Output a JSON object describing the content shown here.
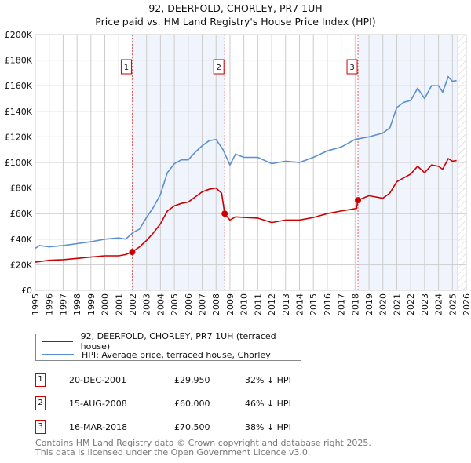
{
  "title_line1": "92, DEERFOLD, CHORLEY, PR7 1UH",
  "title_line2": "Price paid vs. HM Land Registry's House Price Index (HPI)",
  "chart_data": {
    "type": "line",
    "xlim": [
      1995,
      2026
    ],
    "ylim": [
      0,
      200000
    ],
    "x_ticks": [
      "1995",
      "1996",
      "1997",
      "1998",
      "1999",
      "2000",
      "2001",
      "2002",
      "2003",
      "2004",
      "2005",
      "2006",
      "2007",
      "2008",
      "2009",
      "2010",
      "2011",
      "2012",
      "2013",
      "2014",
      "2015",
      "2016",
      "2017",
      "2018",
      "2019",
      "2020",
      "2021",
      "2022",
      "2023",
      "2024",
      "2025",
      "2026"
    ],
    "y_ticks": [
      {
        "v": 0,
        "label": "£0"
      },
      {
        "v": 20000,
        "label": "£20K"
      },
      {
        "v": 40000,
        "label": "£40K"
      },
      {
        "v": 60000,
        "label": "£60K"
      },
      {
        "v": 80000,
        "label": "£80K"
      },
      {
        "v": 100000,
        "label": "£100K"
      },
      {
        "v": 120000,
        "label": "£120K"
      },
      {
        "v": 140000,
        "label": "£140K"
      },
      {
        "v": 160000,
        "label": "£160K"
      },
      {
        "v": 180000,
        "label": "£180K"
      },
      {
        "v": 200000,
        "label": "£200K"
      }
    ],
    "grid": true,
    "data_end_year": 2025.4,
    "series": [
      {
        "name": "92, DEERFOLD, CHORLEY, PR7 1UH (terraced house)",
        "color": "#cc0000",
        "points": [
          [
            1995,
            22000
          ],
          [
            1996,
            23500
          ],
          [
            1997,
            24000
          ],
          [
            1998,
            25000
          ],
          [
            1999,
            26000
          ],
          [
            2000,
            27000
          ],
          [
            2001,
            27000
          ],
          [
            2001.5,
            28000
          ],
          [
            2001.97,
            29950
          ],
          [
            2002.5,
            34000
          ],
          [
            2003,
            39000
          ],
          [
            2003.5,
            45000
          ],
          [
            2004,
            52000
          ],
          [
            2004.5,
            62000
          ],
          [
            2005,
            66000
          ],
          [
            2005.5,
            68000
          ],
          [
            2006,
            69000
          ],
          [
            2006.5,
            73000
          ],
          [
            2007,
            77000
          ],
          [
            2007.5,
            79000
          ],
          [
            2008,
            80000
          ],
          [
            2008.4,
            76000
          ],
          [
            2008.62,
            60000
          ],
          [
            2009,
            55000
          ],
          [
            2009.4,
            57500
          ],
          [
            2010,
            57000
          ],
          [
            2011,
            56500
          ],
          [
            2012,
            53000
          ],
          [
            2013,
            55000
          ],
          [
            2014,
            55000
          ],
          [
            2015,
            57000
          ],
          [
            2016,
            60000
          ],
          [
            2017,
            62000
          ],
          [
            2018.1,
            64000
          ],
          [
            2018.21,
            70500
          ],
          [
            2019,
            74000
          ],
          [
            2020,
            72000
          ],
          [
            2020.5,
            76000
          ],
          [
            2021,
            85000
          ],
          [
            2022,
            91000
          ],
          [
            2022.5,
            97000
          ],
          [
            2023,
            92000
          ],
          [
            2023.5,
            98000
          ],
          [
            2024,
            97000
          ],
          [
            2024.3,
            94700
          ],
          [
            2024.7,
            103000
          ],
          [
            2025,
            101000
          ],
          [
            2025.3,
            101500
          ]
        ]
      },
      {
        "name": "HPI: Average price, terraced house, Chorley",
        "color": "#5b8fd0",
        "points": [
          [
            1995,
            32800
          ],
          [
            1995.3,
            35000
          ],
          [
            1996,
            34000
          ],
          [
            1997,
            35000
          ],
          [
            1998,
            36500
          ],
          [
            1999,
            38000
          ],
          [
            2000,
            40000
          ],
          [
            2001,
            41000
          ],
          [
            2001.5,
            40000
          ],
          [
            2002,
            45000
          ],
          [
            2002.5,
            48000
          ],
          [
            2003,
            57000
          ],
          [
            2003.5,
            65000
          ],
          [
            2004,
            75000
          ],
          [
            2004.5,
            92000
          ],
          [
            2005,
            99000
          ],
          [
            2005.5,
            102000
          ],
          [
            2006,
            102000
          ],
          [
            2006.5,
            108000
          ],
          [
            2007,
            113000
          ],
          [
            2007.5,
            117000
          ],
          [
            2008,
            118000
          ],
          [
            2008.5,
            110000
          ],
          [
            2009,
            98000
          ],
          [
            2009.4,
            106500
          ],
          [
            2010,
            104000
          ],
          [
            2011,
            104000
          ],
          [
            2012,
            99000
          ],
          [
            2013,
            101000
          ],
          [
            2014,
            100000
          ],
          [
            2015,
            104000
          ],
          [
            2016,
            109000
          ],
          [
            2017,
            112000
          ],
          [
            2018,
            118000
          ],
          [
            2019,
            120000
          ],
          [
            2020,
            123000
          ],
          [
            2020.5,
            127000
          ],
          [
            2021,
            143000
          ],
          [
            2021.5,
            147000
          ],
          [
            2022,
            148500
          ],
          [
            2022.5,
            158000
          ],
          [
            2023,
            150000
          ],
          [
            2023.5,
            160000
          ],
          [
            2024,
            160000
          ],
          [
            2024.3,
            155000
          ],
          [
            2024.7,
            167000
          ],
          [
            2025,
            163500
          ],
          [
            2025.3,
            164000
          ]
        ]
      }
    ],
    "sales": [
      {
        "n": "1",
        "year": 2001.97,
        "price": 29950
      },
      {
        "n": "2",
        "year": 2008.62,
        "price": 60000
      },
      {
        "n": "3",
        "year": 2018.21,
        "price": 70500
      }
    ]
  },
  "legend": {
    "property": "92, DEERFOLD, CHORLEY, PR7 1UH (terraced house)",
    "hpi": "HPI: Average price, terraced house, Chorley"
  },
  "transactions": [
    {
      "n": "1",
      "date": "20-DEC-2001",
      "price": "£29,950",
      "hpi": "32% ↓ HPI"
    },
    {
      "n": "2",
      "date": "15-AUG-2008",
      "price": "£60,000",
      "hpi": "46% ↓ HPI"
    },
    {
      "n": "3",
      "date": "16-MAR-2018",
      "price": "£70,500",
      "hpi": "38% ↓ HPI"
    }
  ],
  "footer": {
    "line1": "Contains HM Land Registry data © Crown copyright and database right 2025.",
    "line2": "This data is licensed under the Open Government Licence v3.0."
  }
}
